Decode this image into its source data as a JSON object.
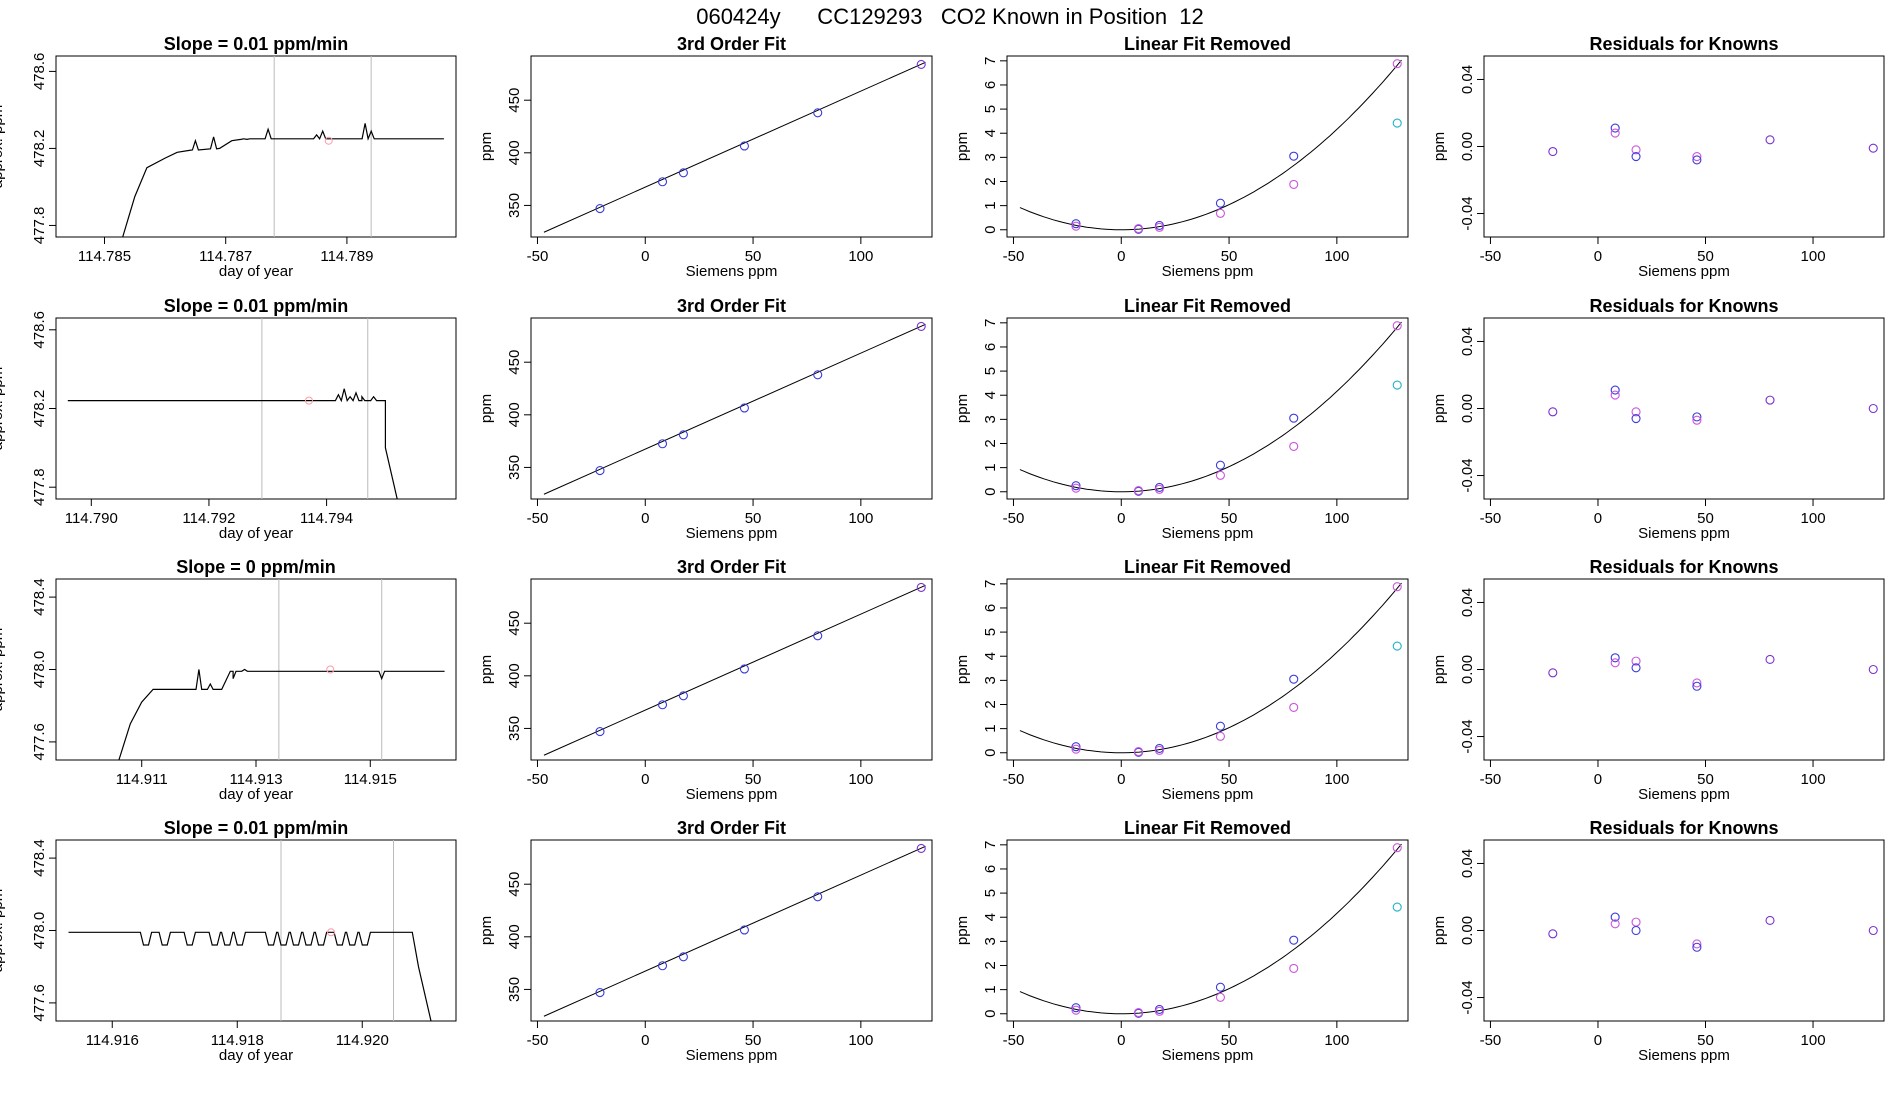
{
  "title": "060424y      CC129293   CO2 Known in Position  12",
  "colors": {
    "line": "#000000",
    "blue": "#3b3bd9",
    "magenta": "#cc55dd",
    "purple": "#7a30cc",
    "cyan": "#22b2c8",
    "vline": "#bbbbbb",
    "pink": "#ff9aa8"
  },
  "chart_data": [
    {
      "type": "line",
      "panel": "slope",
      "row": 1,
      "title": "Slope =  0.01  ppm/min",
      "xlabel": "day of year",
      "ylabel": "approx. ppm",
      "xlim": [
        114.7842,
        114.7908
      ],
      "ylim": [
        477.74,
        478.68
      ],
      "xticks": [
        114.785,
        114.787,
        114.789
      ],
      "xtick_labels": [
        "114.785",
        "114.787",
        "114.789"
      ],
      "yticks": [
        477.8,
        478.2,
        478.6
      ],
      "ytick_labels": [
        "477.8",
        "478.2",
        "478.6"
      ],
      "vlines": [
        114.7878,
        114.7894
      ],
      "marker": {
        "x": 114.7887,
        "y": 478.24
      },
      "x": [
        114.7853,
        114.7855,
        114.7857,
        114.786,
        114.7862,
        114.7864,
        114.7869,
        114.7871,
        114.7874,
        114.788,
        114.7882,
        114.789,
        114.7892,
        114.7906
      ],
      "y": [
        477.74,
        477.95,
        478.1,
        478.15,
        478.18,
        478.19,
        478.2,
        478.24,
        478.25,
        478.25,
        478.25,
        478.25,
        478.25,
        478.25
      ],
      "spikes": [
        [
          114.7865,
          478.24
        ],
        [
          114.7868,
          478.26
        ],
        [
          114.7873,
          478.25
        ],
        [
          114.7877,
          478.3
        ],
        [
          114.7885,
          478.27
        ],
        [
          114.7886,
          478.29
        ],
        [
          114.7893,
          478.33
        ],
        [
          114.7894,
          478.29
        ]
      ]
    },
    {
      "type": "line",
      "panel": "slope",
      "row": 2,
      "title": "Slope =  0.01  ppm/min",
      "xlabel": "day of year",
      "ylabel": "approx. ppm",
      "xlim": [
        114.7894,
        114.7962
      ],
      "ylim": [
        477.74,
        478.66
      ],
      "xticks": [
        114.79,
        114.792,
        114.794
      ],
      "xtick_labels": [
        "114.790",
        "114.792",
        "114.794"
      ],
      "yticks": [
        477.8,
        478.2,
        478.6
      ],
      "ytick_labels": [
        "477.8",
        "478.2",
        "478.6"
      ],
      "vlines": [
        114.7929,
        114.7947
      ],
      "marker": {
        "x": 114.7937,
        "y": 478.24
      },
      "x": [
        114.7896,
        114.7946,
        114.795,
        114.795,
        114.7952
      ],
      "y": [
        478.24,
        478.24,
        478.24,
        478.0,
        477.74
      ],
      "spikes": [
        [
          114.7942,
          478.27
        ],
        [
          114.7943,
          478.3
        ],
        [
          114.7944,
          478.26
        ],
        [
          114.7945,
          478.28
        ],
        [
          114.7946,
          478.26
        ],
        [
          114.7948,
          478.26
        ]
      ]
    },
    {
      "type": "line",
      "panel": "slope",
      "row": 3,
      "title": "Slope =  0  ppm/min",
      "xlabel": "day of year",
      "ylabel": "approx. ppm",
      "xlim": [
        114.9095,
        114.9165
      ],
      "ylim": [
        477.5,
        478.5
      ],
      "xticks": [
        114.911,
        114.913,
        114.915
      ],
      "xtick_labels": [
        "114.911",
        "114.913",
        "114.915"
      ],
      "yticks": [
        477.6,
        478.0,
        478.4
      ],
      "ytick_labels": [
        "477.6",
        "478.0",
        "478.4"
      ],
      "vlines": [
        114.9134,
        114.9152
      ],
      "marker": {
        "x": 114.9143,
        "y": 478.0
      },
      "x": [
        114.9106,
        114.9108,
        114.911,
        114.9112,
        114.9116,
        114.9124,
        114.9126,
        114.9163
      ],
      "y": [
        477.5,
        477.7,
        477.82,
        477.89,
        477.89,
        477.89,
        477.99,
        477.99
      ],
      "spikes": [
        [
          114.912,
          478.0
        ],
        [
          114.9122,
          477.92
        ],
        [
          114.9126,
          477.95
        ],
        [
          114.9128,
          478.0
        ],
        [
          114.9152,
          477.95
        ]
      ]
    },
    {
      "type": "line",
      "panel": "slope",
      "row": 4,
      "title": "Slope =  0.01  ppm/min",
      "xlabel": "day of year",
      "ylabel": "approx. ppm",
      "xlim": [
        114.9151,
        114.9215
      ],
      "ylim": [
        477.5,
        478.5
      ],
      "xticks": [
        114.916,
        114.918,
        114.92
      ],
      "xtick_labels": [
        "114.916",
        "114.918",
        "114.920"
      ],
      "yticks": [
        477.6,
        478.0,
        478.4
      ],
      "ytick_labels": [
        "477.6",
        "478.0",
        "478.4"
      ],
      "vlines": [
        114.9187,
        114.9205
      ],
      "marker": {
        "x": 114.9195,
        "y": 477.99
      },
      "x": [
        114.9153,
        114.9205,
        114.9208,
        114.9209,
        114.9211
      ],
      "y": [
        477.99,
        477.99,
        477.99,
        477.8,
        477.5
      ],
      "dips": [
        114.9165,
        114.9168,
        114.9172,
        114.9176,
        114.9178,
        114.918,
        114.9185,
        114.9187,
        114.9189,
        114.9191,
        114.9193,
        114.9196,
        114.9198,
        114.92
      ]
    },
    {
      "type": "scatter",
      "panel": "fit",
      "title": "3rd Order Fit",
      "xlabel": "Siemens ppm",
      "ylabel": "ppm",
      "xlim": [
        -53,
        133
      ],
      "ylim": [
        320,
        492
      ],
      "xticks": [
        -50,
        0,
        50,
        100
      ],
      "xtick_labels": [
        "-50",
        "0",
        "50",
        "100"
      ],
      "yticks": [
        350,
        400,
        450
      ],
      "ytick_labels": [
        "350",
        "400",
        "450"
      ],
      "x": [
        -21,
        8,
        17.7,
        46,
        80,
        128
      ],
      "y": [
        347,
        372.5,
        381,
        406.5,
        438,
        484
      ],
      "curve_x": [
        -47,
        130
      ],
      "curve_y": [
        324.5,
        486
      ]
    },
    {
      "type": "scatter",
      "panel": "linear",
      "title": "Linear Fit Removed",
      "xlabel": "Siemens ppm",
      "ylabel": "ppm",
      "xlim": [
        -53,
        133
      ],
      "ylim": [
        -0.3,
        7.2
      ],
      "xticks": [
        -50,
        0,
        50,
        100
      ],
      "xtick_labels": [
        "-50",
        "0",
        "50",
        "100"
      ],
      "yticks": [
        0,
        1,
        2,
        3,
        4,
        5,
        6,
        7
      ],
      "ytick_labels": [
        "0",
        "1",
        "2",
        "3",
        "4",
        "5",
        "6",
        "7"
      ],
      "points": [
        {
          "x": -21,
          "y": 0.25,
          "c": "blue"
        },
        {
          "x": -21,
          "y": 0.15,
          "c": "magenta"
        },
        {
          "x": 8,
          "y": 0.02,
          "c": "blue"
        },
        {
          "x": 8,
          "y": 0.05,
          "c": "magenta"
        },
        {
          "x": 17.7,
          "y": 0.18,
          "c": "blue"
        },
        {
          "x": 17.7,
          "y": 0.1,
          "c": "magenta"
        },
        {
          "x": 46,
          "y": 1.1,
          "c": "blue"
        },
        {
          "x": 46,
          "y": 0.68,
          "c": "magenta"
        },
        {
          "x": 80,
          "y": 3.05,
          "c": "blue"
        },
        {
          "x": 80,
          "y": 1.88,
          "c": "magenta"
        },
        {
          "x": 128,
          "y": 6.88,
          "c": "magenta"
        },
        {
          "x": 128,
          "y": 4.42,
          "c": "cyan"
        }
      ],
      "curve": {
        "a": 0.000416,
        "h": 0,
        "xrange": [
          -47,
          130
        ]
      }
    },
    {
      "type": "scatter",
      "panel": "resid",
      "title": "Residuals for Knowns",
      "xlabel": "Siemens ppm",
      "ylabel": "ppm",
      "xlim": [
        -53,
        133
      ],
      "ylim": [
        -0.054,
        0.054
      ],
      "xticks": [
        -50,
        0,
        50,
        100
      ],
      "xtick_labels": [
        "-50",
        "0",
        "50",
        "100"
      ],
      "yticks": [
        -0.04,
        0.0,
        0.04
      ],
      "ytick_labels": [
        "-0.04",
        "0.00",
        "0.04"
      ],
      "rows": [
        [
          {
            "x": -21,
            "y": -0.003,
            "c": "purple"
          },
          {
            "x": 8,
            "y": 0.011,
            "c": "blue"
          },
          {
            "x": 8,
            "y": 0.008,
            "c": "magenta"
          },
          {
            "x": 17.7,
            "y": -0.002,
            "c": "magenta"
          },
          {
            "x": 17.7,
            "y": -0.006,
            "c": "blue"
          },
          {
            "x": 46,
            "y": -0.006,
            "c": "magenta"
          },
          {
            "x": 46,
            "y": -0.008,
            "c": "blue"
          },
          {
            "x": 80,
            "y": 0.004,
            "c": "purple"
          },
          {
            "x": 128,
            "y": -0.001,
            "c": "purple"
          }
        ],
        [
          {
            "x": -21,
            "y": -0.002,
            "c": "purple"
          },
          {
            "x": 8,
            "y": 0.011,
            "c": "blue"
          },
          {
            "x": 8,
            "y": 0.008,
            "c": "magenta"
          },
          {
            "x": 17.7,
            "y": -0.002,
            "c": "magenta"
          },
          {
            "x": 17.7,
            "y": -0.006,
            "c": "blue"
          },
          {
            "x": 46,
            "y": -0.005,
            "c": "blue"
          },
          {
            "x": 46,
            "y": -0.007,
            "c": "magenta"
          },
          {
            "x": 80,
            "y": 0.005,
            "c": "purple"
          },
          {
            "x": 128,
            "y": 0.0,
            "c": "purple"
          }
        ],
        [
          {
            "x": -21,
            "y": -0.002,
            "c": "purple"
          },
          {
            "x": 8,
            "y": 0.007,
            "c": "blue"
          },
          {
            "x": 8,
            "y": 0.004,
            "c": "magenta"
          },
          {
            "x": 17.7,
            "y": 0.005,
            "c": "magenta"
          },
          {
            "x": 17.7,
            "y": 0.001,
            "c": "blue"
          },
          {
            "x": 46,
            "y": -0.008,
            "c": "magenta"
          },
          {
            "x": 46,
            "y": -0.01,
            "c": "blue"
          },
          {
            "x": 80,
            "y": 0.006,
            "c": "purple"
          },
          {
            "x": 128,
            "y": 0.0,
            "c": "purple"
          }
        ],
        [
          {
            "x": -21,
            "y": -0.002,
            "c": "purple"
          },
          {
            "x": 8,
            "y": 0.008,
            "c": "blue"
          },
          {
            "x": 8,
            "y": 0.004,
            "c": "magenta"
          },
          {
            "x": 17.7,
            "y": 0.005,
            "c": "magenta"
          },
          {
            "x": 17.7,
            "y": 0.0,
            "c": "blue"
          },
          {
            "x": 46,
            "y": -0.008,
            "c": "magenta"
          },
          {
            "x": 46,
            "y": -0.01,
            "c": "blue"
          },
          {
            "x": 80,
            "y": 0.006,
            "c": "purple"
          },
          {
            "x": 128,
            "y": 0.0,
            "c": "purple"
          }
        ]
      ]
    }
  ]
}
